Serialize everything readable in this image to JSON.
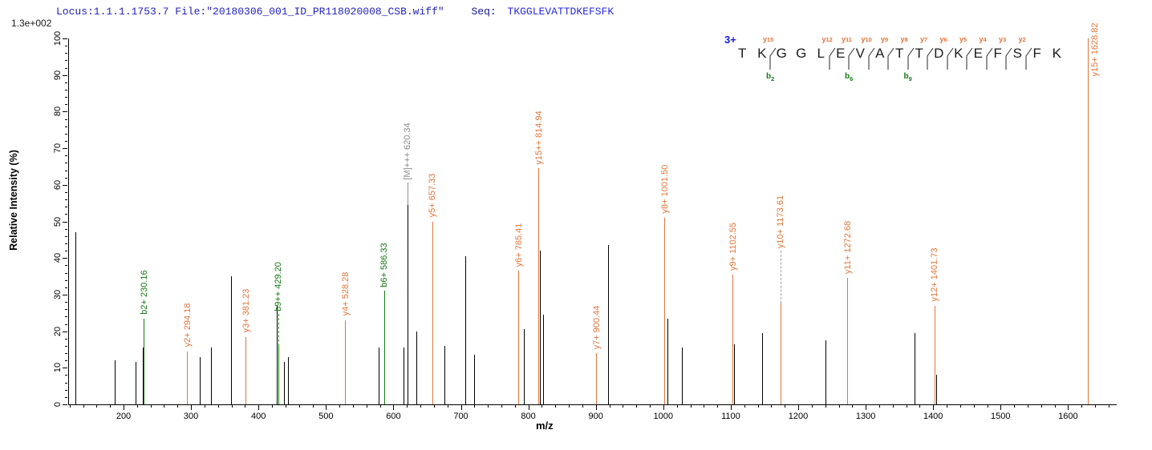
{
  "header": {
    "locus_file": "Locus:1.1.1.1753.7 File:\"20180306_001_ID_PR118020008_CSB.wiff\"",
    "seq_prefix": "Seq:",
    "sequence": "TKGGLEVATTDKEFSFK",
    "base_peak_intensity": "1.3e+002"
  },
  "sequence_panel": {
    "charge_label": "3+",
    "residues": [
      "T",
      "K",
      "G",
      "G",
      "L",
      "E",
      "V",
      "A",
      "T",
      "T",
      "D",
      "K",
      "E",
      "F",
      "S",
      "F",
      "K"
    ],
    "cuts": [
      {
        "before_index": 2,
        "y": "y15",
        "b": "b2"
      },
      {
        "before_index": 5,
        "y": "y12",
        "b": ""
      },
      {
        "before_index": 6,
        "y": "y11",
        "b": "b6"
      },
      {
        "before_index": 7,
        "y": "y10",
        "b": ""
      },
      {
        "before_index": 8,
        "y": "y9",
        "b": ""
      },
      {
        "before_index": 9,
        "y": "y8",
        "b": "b9"
      },
      {
        "before_index": 10,
        "y": "y7",
        "b": ""
      },
      {
        "before_index": 11,
        "y": "y6",
        "b": ""
      },
      {
        "before_index": 12,
        "y": "y5",
        "b": ""
      },
      {
        "before_index": 13,
        "y": "y4",
        "b": ""
      },
      {
        "before_index": 14,
        "y": "y3",
        "b": ""
      },
      {
        "before_index": 15,
        "y": "y2",
        "b": ""
      }
    ]
  },
  "colors": {
    "y_ion": "#e0763c",
    "b_ion": "#157a15",
    "unassigned": "#000000",
    "precursor_label": "#8c8c8c",
    "header_blue": "#1f1fbf",
    "charge_blue": "#1b1be0"
  },
  "chart_data": {
    "type": "bar",
    "subtype": "ms2-centroid-spectrum",
    "title": "",
    "xlabel": "m/z",
    "ylabel": "Relative  Intensity (%)",
    "x_axis": {
      "range": [
        118,
        1672
      ],
      "major_ticks": [
        200,
        300,
        400,
        500,
        600,
        700,
        800,
        900,
        1000,
        1100,
        1200,
        1300,
        1400,
        1500,
        1600
      ],
      "minor_step": 20
    },
    "y_axis": {
      "range": [
        0,
        100
      ],
      "major_step": 10,
      "minor_step": 2
    },
    "grid": false,
    "legend": false,
    "peaks": [
      {
        "mz": 129,
        "intensity": 47,
        "type": "u"
      },
      {
        "mz": 187,
        "intensity": 12,
        "type": "u"
      },
      {
        "mz": 218,
        "intensity": 11.5,
        "type": "u"
      },
      {
        "mz": 229,
        "intensity": 15.5,
        "type": "u"
      },
      {
        "mz": 230.16,
        "intensity": 23.5,
        "type": "b",
        "label": "b2+ 230.16"
      },
      {
        "mz": 294.18,
        "intensity": 14.5,
        "type": "y",
        "label": "y2+ 294.18"
      },
      {
        "mz": 313,
        "intensity": 13,
        "type": "u"
      },
      {
        "mz": 329,
        "intensity": 15.5,
        "type": "u"
      },
      {
        "mz": 359,
        "intensity": 35,
        "type": "u"
      },
      {
        "mz": 381.23,
        "intensity": 18.5,
        "type": "y",
        "label": "y3+ 381.23"
      },
      {
        "mz": 427,
        "intensity": 27,
        "type": "u"
      },
      {
        "mz": 429.2,
        "intensity": 16,
        "type": "b",
        "label": "b9++ 429.20",
        "dash": 40
      },
      {
        "mz": 438,
        "intensity": 11.5,
        "type": "u"
      },
      {
        "mz": 444,
        "intensity": 13,
        "type": "u"
      },
      {
        "mz": 528.28,
        "intensity": 23,
        "type": "y",
        "label": "y4+ 528.28"
      },
      {
        "mz": 578,
        "intensity": 15.5,
        "type": "u"
      },
      {
        "mz": 586.33,
        "intensity": 31,
        "type": "b",
        "label": "b6+ 586.33"
      },
      {
        "mz": 615,
        "intensity": 15.5,
        "type": "u"
      },
      {
        "mz": 620.34,
        "intensity": 54.5,
        "type": "m",
        "label": "[M]+++ 620.34"
      },
      {
        "mz": 634,
        "intensity": 20,
        "type": "u"
      },
      {
        "mz": 657.33,
        "intensity": 50,
        "type": "y",
        "label": "y5+ 657.33"
      },
      {
        "mz": 675,
        "intensity": 16,
        "type": "u"
      },
      {
        "mz": 706,
        "intensity": 40.5,
        "type": "u"
      },
      {
        "mz": 720,
        "intensity": 13.5,
        "type": "u"
      },
      {
        "mz": 785.41,
        "intensity": 36.5,
        "type": "y",
        "label": "y6+ 785.41"
      },
      {
        "mz": 793,
        "intensity": 20.5,
        "type": "u"
      },
      {
        "mz": 814.94,
        "intensity": 64.5,
        "type": "y",
        "label": "y15++ 814.94"
      },
      {
        "mz": 817,
        "intensity": 42,
        "type": "u"
      },
      {
        "mz": 822,
        "intensity": 24.5,
        "type": "u"
      },
      {
        "mz": 900.44,
        "intensity": 14,
        "type": "y",
        "label": "y7+ 900.44"
      },
      {
        "mz": 918,
        "intensity": 43.5,
        "type": "u"
      },
      {
        "mz": 1001.5,
        "intensity": 51,
        "type": "y",
        "label": "y8+ 1001.50"
      },
      {
        "mz": 1006,
        "intensity": 23.5,
        "type": "u"
      },
      {
        "mz": 1028,
        "intensity": 15.5,
        "type": "u"
      },
      {
        "mz": 1102.55,
        "intensity": 35.5,
        "type": "y",
        "label": "y9+ 1102.55"
      },
      {
        "mz": 1105,
        "intensity": 16.5,
        "type": "u"
      },
      {
        "mz": 1147,
        "intensity": 19.5,
        "type": "u"
      },
      {
        "mz": 1173.61,
        "intensity": 27.5,
        "type": "y",
        "label": "y10+ 1173.61",
        "dash": 66
      },
      {
        "mz": 1240,
        "intensity": 17.5,
        "type": "u"
      },
      {
        "mz": 1272.68,
        "intensity": 34.5,
        "type": "y",
        "label": "y11+ 1272.68"
      },
      {
        "mz": 1372,
        "intensity": 19.5,
        "type": "u"
      },
      {
        "mz": 1401.73,
        "intensity": 27,
        "type": "y",
        "label": "y12+ 1401.73"
      },
      {
        "mz": 1404,
        "intensity": 8,
        "type": "u"
      },
      {
        "mz": 1628.82,
        "intensity": 100,
        "type": "y",
        "label": "y15+ 1628.82"
      }
    ]
  }
}
